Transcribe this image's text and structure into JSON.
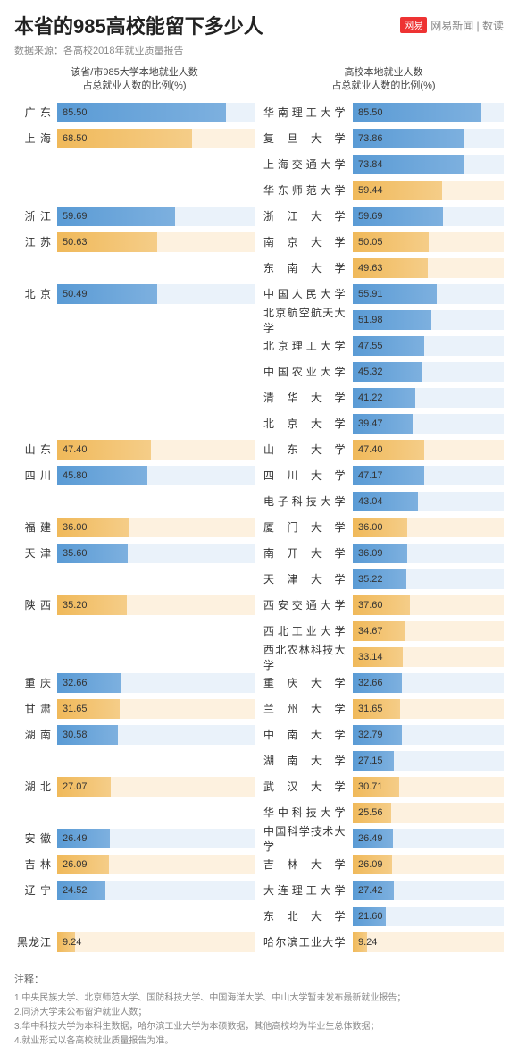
{
  "title": "本省的985高校能留下多少人",
  "brand_badge": "网易",
  "brand_text": "网易新闻 | 数读",
  "source": "数据来源：各高校2018年就业质量报告",
  "left_header_line1": "该省/市985大学本地就业人数",
  "left_header_line2": "占总就业人数的比例(%)",
  "right_header_line1": "高校本地就业人数",
  "right_header_line2": "占总就业人数的比例(%)",
  "max_value": 100,
  "colors": {
    "bar_blue": "#6fa8dc",
    "bar_blue_bg": "#eaf2fa",
    "bar_orange": "#f0b95a",
    "bar_orange_bg": "#fdf1df"
  },
  "provinces": [
    {
      "name": "广 东",
      "value": 85.5,
      "color": "blue",
      "universities": [
        {
          "name": "华南理工大学",
          "value": 85.5,
          "color": "blue"
        }
      ]
    },
    {
      "name": "上 海",
      "value": 68.5,
      "color": "orange",
      "universities": [
        {
          "name": "复 旦 大 学",
          "value": 73.86,
          "color": "blue"
        },
        {
          "name": "上海交通大学",
          "value": 73.84,
          "color": "blue"
        },
        {
          "name": "华东师范大学",
          "value": 59.44,
          "color": "orange"
        }
      ]
    },
    {
      "name": "浙 江",
      "value": 59.69,
      "color": "blue",
      "universities": [
        {
          "name": "浙 江 大 学",
          "value": 59.69,
          "color": "blue"
        }
      ]
    },
    {
      "name": "江 苏",
      "value": 50.63,
      "color": "orange",
      "universities": [
        {
          "name": "南 京 大 学",
          "value": 50.05,
          "color": "orange"
        },
        {
          "name": "东 南 大 学",
          "value": 49.63,
          "color": "orange"
        }
      ]
    },
    {
      "name": "北 京",
      "value": 50.49,
      "color": "blue",
      "universities": [
        {
          "name": "中国人民大学",
          "value": 55.91,
          "color": "blue"
        },
        {
          "name": "北京航空航天大学",
          "value": 51.98,
          "color": "blue"
        },
        {
          "name": "北京理工大学",
          "value": 47.55,
          "color": "blue"
        },
        {
          "name": "中国农业大学",
          "value": 45.32,
          "color": "blue"
        },
        {
          "name": "清 华 大 学",
          "value": 41.22,
          "color": "blue"
        },
        {
          "name": "北 京 大 学",
          "value": 39.47,
          "color": "blue"
        }
      ]
    },
    {
      "name": "山 东",
      "value": 47.4,
      "color": "orange",
      "universities": [
        {
          "name": "山 东 大 学",
          "value": 47.4,
          "color": "orange"
        }
      ]
    },
    {
      "name": "四 川",
      "value": 45.8,
      "color": "blue",
      "universities": [
        {
          "name": "四 川 大 学",
          "value": 47.17,
          "color": "blue"
        },
        {
          "name": "电子科技大学",
          "value": 43.04,
          "color": "blue"
        }
      ]
    },
    {
      "name": "福 建",
      "value": 36.0,
      "color": "orange",
      "universities": [
        {
          "name": "厦 门 大 学",
          "value": 36.0,
          "color": "orange"
        }
      ]
    },
    {
      "name": "天 津",
      "value": 35.6,
      "color": "blue",
      "universities": [
        {
          "name": "南 开 大 学",
          "value": 36.09,
          "color": "blue"
        },
        {
          "name": "天 津 大 学",
          "value": 35.22,
          "color": "blue"
        }
      ]
    },
    {
      "name": "陕 西",
      "value": 35.2,
      "color": "orange",
      "universities": [
        {
          "name": "西安交通大学",
          "value": 37.6,
          "color": "orange"
        },
        {
          "name": "西北工业大学",
          "value": 34.67,
          "color": "orange"
        },
        {
          "name": "西北农林科技大学",
          "value": 33.14,
          "color": "orange"
        }
      ]
    },
    {
      "name": "重 庆",
      "value": 32.66,
      "color": "blue",
      "universities": [
        {
          "name": "重 庆 大 学",
          "value": 32.66,
          "color": "blue"
        }
      ]
    },
    {
      "name": "甘 肃",
      "value": 31.65,
      "color": "orange",
      "universities": [
        {
          "name": "兰 州 大 学",
          "value": 31.65,
          "color": "orange"
        }
      ]
    },
    {
      "name": "湖 南",
      "value": 30.58,
      "color": "blue",
      "universities": [
        {
          "name": "中 南 大 学",
          "value": 32.79,
          "color": "blue"
        },
        {
          "name": "湖 南 大 学",
          "value": 27.15,
          "color": "blue"
        }
      ]
    },
    {
      "name": "湖 北",
      "value": 27.07,
      "color": "orange",
      "universities": [
        {
          "name": "武 汉 大 学",
          "value": 30.71,
          "color": "orange"
        },
        {
          "name": "华中科技大学",
          "value": 25.56,
          "color": "orange"
        }
      ]
    },
    {
      "name": "安 徽",
      "value": 26.49,
      "color": "blue",
      "universities": [
        {
          "name": "中国科学技术大学",
          "value": 26.49,
          "color": "blue"
        }
      ]
    },
    {
      "name": "吉 林",
      "value": 26.09,
      "color": "orange",
      "universities": [
        {
          "name": "吉 林 大 学",
          "value": 26.09,
          "color": "orange"
        }
      ]
    },
    {
      "name": "辽 宁",
      "value": 24.52,
      "color": "blue",
      "universities": [
        {
          "name": "大连理工大学",
          "value": 27.42,
          "color": "blue"
        },
        {
          "name": "东 北 大 学",
          "value": 21.6,
          "color": "blue"
        }
      ]
    },
    {
      "name": "黑龙江",
      "value": 9.24,
      "color": "orange",
      "universities": [
        {
          "name": "哈尔滨工业大学",
          "value": 9.24,
          "color": "orange"
        }
      ]
    }
  ],
  "notes_title": "注释：",
  "notes": [
    "1.中央民族大学、北京师范大学、国防科技大学、中国海洋大学、中山大学暂未发布最新就业报告；",
    "2.同济大学未公布留沪就业人数；",
    "3.华中科技大学为本科生数据，哈尔滨工业大学为本硕数据，其他高校均为毕业生总体数据；",
    "4.就业形式以各高校就业质量报告为准。"
  ]
}
